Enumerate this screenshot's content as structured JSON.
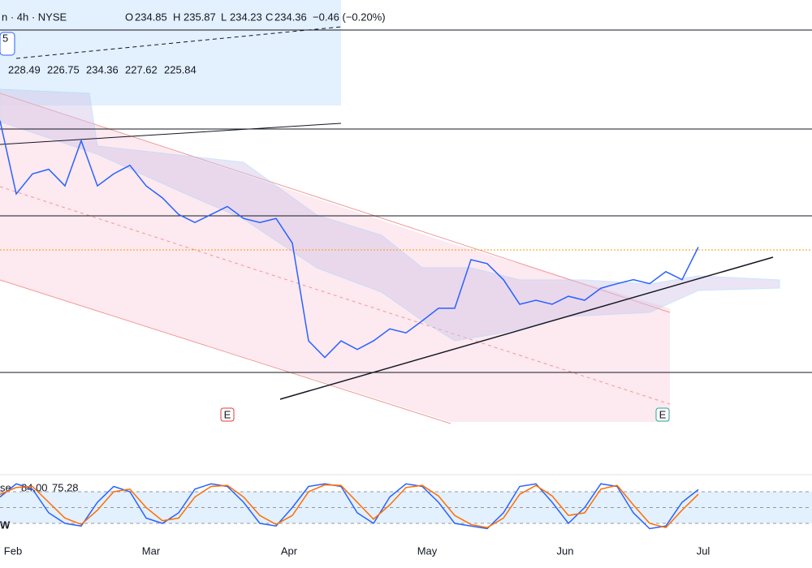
{
  "header": {
    "symbol": "n · 4h · NYSE",
    "open_label": "O",
    "open": 234.85,
    "high_label": "H",
    "high": 235.87,
    "low_label": "L",
    "low": 234.23,
    "close_label": "C",
    "close": 234.36,
    "change": "−0.46 (−0.20%)",
    "badge": "5"
  },
  "indicators": [
    {
      "text": "228.49",
      "color": "#7b1fa2"
    },
    {
      "text": "226.75",
      "color": "#e53935"
    },
    {
      "text": "234.36",
      "color": "#2e7d32"
    },
    {
      "text": "227.62",
      "color": "#787b86"
    },
    {
      "text": "225.84",
      "color": "#90caf9"
    }
  ],
  "earnings": [
    "E",
    "E"
  ],
  "stoch": {
    "label": "se",
    "k": 84.0,
    "d": 75.28,
    "k_label": "84.00",
    "w": "W"
  },
  "chart_data": [
    {
      "type": "line",
      "ylim": [
        195,
        278
      ],
      "series": [
        {
          "name": "Close",
          "color": "#2962ff",
          "values": [
            256.9,
            244.1,
            247.6,
            248.4,
            245.5,
            253.4,
            245.5,
            247.6,
            249.1,
            245.5,
            243.4,
            240.5,
            239.1,
            240.5,
            241.9,
            239.8,
            239.1,
            239.8,
            235.5,
            218.4,
            215.5,
            218.4,
            216.9,
            218.4,
            220.5,
            219.8,
            221.9,
            224.1,
            224.1,
            232.6,
            231.9,
            229.1,
            224.8,
            225.5,
            224.8,
            226.2,
            225.5,
            227.6,
            228.4,
            229.1,
            228.4,
            230.5,
            229.1,
            234.8
          ]
        }
      ],
      "x_labels": [
        "Feb",
        "Mar",
        "Apr",
        "May",
        "Jun",
        "Jul"
      ]
    },
    {
      "type": "line",
      "ylim": [
        0,
        100
      ],
      "series": [
        {
          "name": "%K",
          "color": "#2962ff",
          "values": [
            70,
            95,
            85,
            40,
            20,
            15,
            60,
            90,
            80,
            30,
            20,
            40,
            85,
            95,
            90,
            60,
            20,
            15,
            50,
            90,
            95,
            90,
            40,
            20,
            70,
            95,
            90,
            60,
            20,
            15,
            10,
            40,
            90,
            95,
            60,
            20,
            50,
            95,
            90,
            40,
            10,
            15,
            60,
            84
          ]
        },
        {
          "name": "%D",
          "color": "#ff6d00",
          "values": [
            75,
            88,
            90,
            60,
            30,
            18,
            45,
            80,
            85,
            50,
            25,
            30,
            70,
            90,
            92,
            70,
            35,
            18,
            35,
            80,
            93,
            92,
            60,
            28,
            55,
            88,
            92,
            72,
            35,
            18,
            12,
            30,
            75,
            92,
            72,
            35,
            40,
            85,
            92,
            55,
            20,
            12,
            45,
            75.28
          ]
        }
      ],
      "yticks": [
        80,
        50,
        20
      ]
    }
  ]
}
